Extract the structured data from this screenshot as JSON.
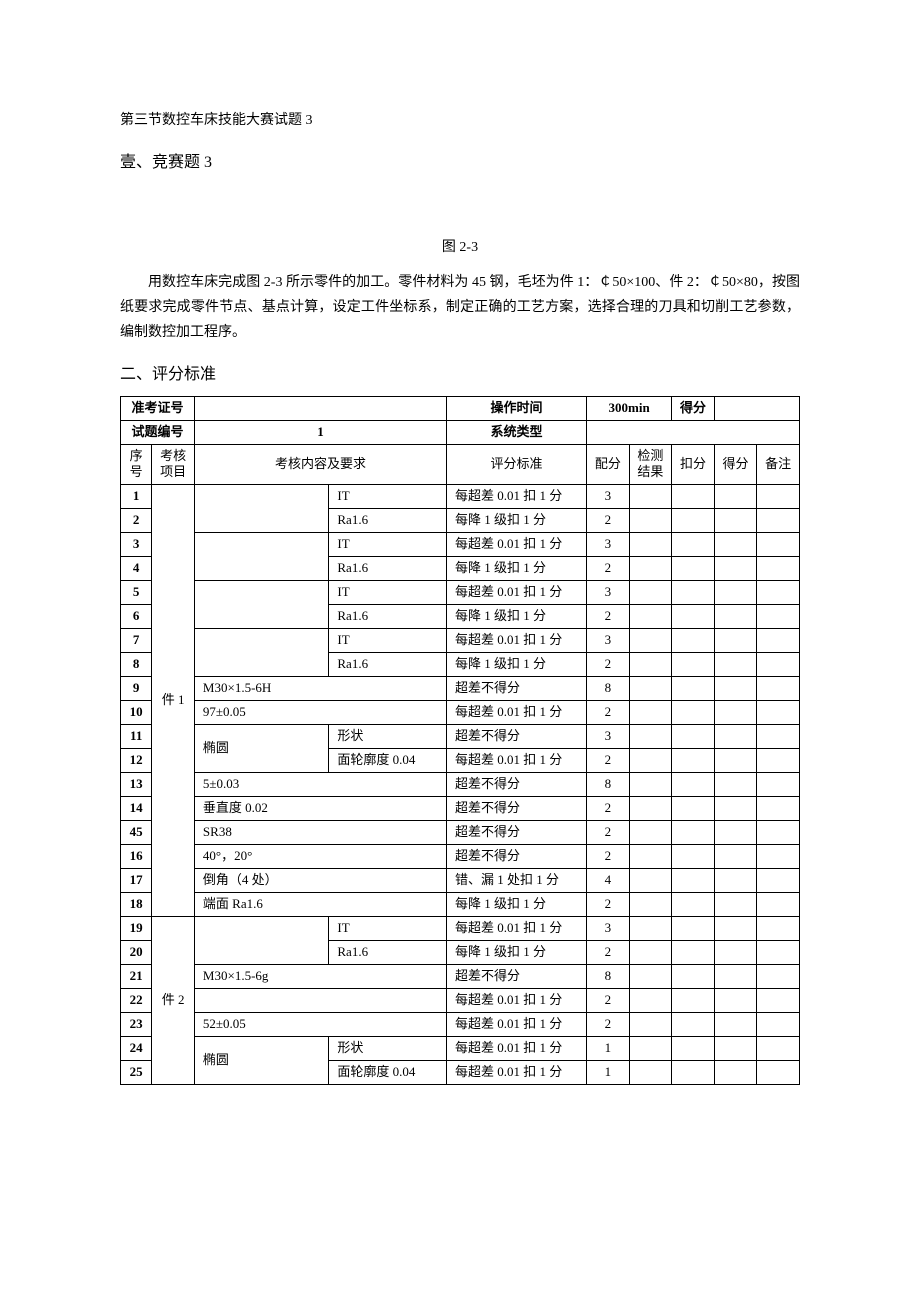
{
  "headings": {
    "section_header": "第三节数控车床技能大赛试题 3",
    "section1": "壹、竞赛题 3",
    "figure_label": "图 2-3",
    "description": "用数控车床完成图 2-3 所示零件的加工。零件材料为 45 钢，毛坯为件 1：￠50×100、件 2：￠50×80，按图纸要求完成零件节点、基点计算，设定工件坐标系，制定正确的工艺方案，选择合理的刀具和切削工艺参数，编制数控加工程序。",
    "section2": "二、评分标准"
  },
  "header_row1": {
    "exam_id_label": "准考证号",
    "exam_id_value": "",
    "op_time_label": "操作时间",
    "op_time_value": "300min",
    "score_label": "得分",
    "score_value": ""
  },
  "header_row2": {
    "question_no_label": "试题编号",
    "question_no_value": "1",
    "system_type_label": "系统类型",
    "system_type_value": ""
  },
  "columns": {
    "seq": "序号",
    "item": "考核项目",
    "content": "考核内容及要求",
    "standard": "评分标准",
    "alloc": "配分",
    "result": "检测结果",
    "deduct": "扣分",
    "final": "得分",
    "note": "备注"
  },
  "part1_label": "件 1",
  "part2_label": "件 2",
  "ellipse_label": "椭圆",
  "rows": [
    {
      "seq": "1",
      "content_main": "",
      "content_sub": "IT",
      "standard": "每超差 0.01 扣 1 分",
      "alloc": "3"
    },
    {
      "seq": "2",
      "content_main": "",
      "content_sub": "Ra1.6",
      "standard": "每降 1 级扣 1 分",
      "alloc": "2"
    },
    {
      "seq": "3",
      "content_main": "",
      "content_sub": "IT",
      "standard": "每超差 0.01 扣 1 分",
      "alloc": "3"
    },
    {
      "seq": "4",
      "content_main": "",
      "content_sub": "Ra1.6",
      "standard": "每降 1 级扣 1 分",
      "alloc": "2"
    },
    {
      "seq": "5",
      "content_main": "",
      "content_sub": "IT",
      "standard": "每超差 0.01 扣 1 分",
      "alloc": "3"
    },
    {
      "seq": "6",
      "content_main": "",
      "content_sub": "Ra1.6",
      "standard": "每降 1 级扣 1 分",
      "alloc": "2"
    },
    {
      "seq": "7",
      "content_main": "",
      "content_sub": "IT",
      "standard": "每超差 0.01 扣 1 分",
      "alloc": "3"
    },
    {
      "seq": "8",
      "content_main": "",
      "content_sub": "Ra1.6",
      "standard": "每降 1 级扣 1 分",
      "alloc": "2"
    },
    {
      "seq": "9",
      "content_full": "M30×1.5-6H",
      "standard": "超差不得分",
      "alloc": "8"
    },
    {
      "seq": "10",
      "content_full": "97±0.05",
      "standard": "每超差 0.01 扣 1 分",
      "alloc": "2"
    },
    {
      "seq": "11",
      "content_sub": "形状",
      "standard": "超差不得分",
      "alloc": "3"
    },
    {
      "seq": "12",
      "content_sub": "面轮廓度 0.04",
      "standard": "每超差 0.01 扣 1 分",
      "alloc": "2"
    },
    {
      "seq": "13",
      "content_full": "5±0.03",
      "standard": "超差不得分",
      "alloc": "8"
    },
    {
      "seq": "14",
      "content_full": "垂直度 0.02",
      "standard": "超差不得分",
      "alloc": "2"
    },
    {
      "seq": "45",
      "content_full": "SR38",
      "standard": "超差不得分",
      "alloc": "2"
    },
    {
      "seq": "16",
      "content_full": "40°，20°",
      "standard": "超差不得分",
      "alloc": "2"
    },
    {
      "seq": "17",
      "content_full": "倒角（4 处）",
      "standard": "错、漏 1 处扣 1 分",
      "alloc": "4"
    },
    {
      "seq": "18",
      "content_full": "端面 Ra1.6",
      "standard": "每降 1 级扣 1 分",
      "alloc": "2"
    },
    {
      "seq": "19",
      "content_main": "",
      "content_sub": "IT",
      "standard": "每超差 0.01 扣 1 分",
      "alloc": "3"
    },
    {
      "seq": "20",
      "content_main": "",
      "content_sub": "Ra1.6",
      "standard": "每降 1 级扣 1 分",
      "alloc": "2"
    },
    {
      "seq": "21",
      "content_full": "M30×1.5-6g",
      "standard": "超差不得分",
      "alloc": "8"
    },
    {
      "seq": "22",
      "content_full": "",
      "standard": "每超差 0.01 扣 1 分",
      "alloc": "2"
    },
    {
      "seq": "23",
      "content_full": "52±0.05",
      "standard": "每超差 0.01 扣 1 分",
      "alloc": "2"
    },
    {
      "seq": "24",
      "content_sub": "形状",
      "standard": "每超差 0.01 扣 1 分",
      "alloc": "1"
    },
    {
      "seq": "25",
      "content_sub": "面轮廓度 0.04",
      "standard": "每超差 0.01 扣 1 分",
      "alloc": "1"
    }
  ]
}
